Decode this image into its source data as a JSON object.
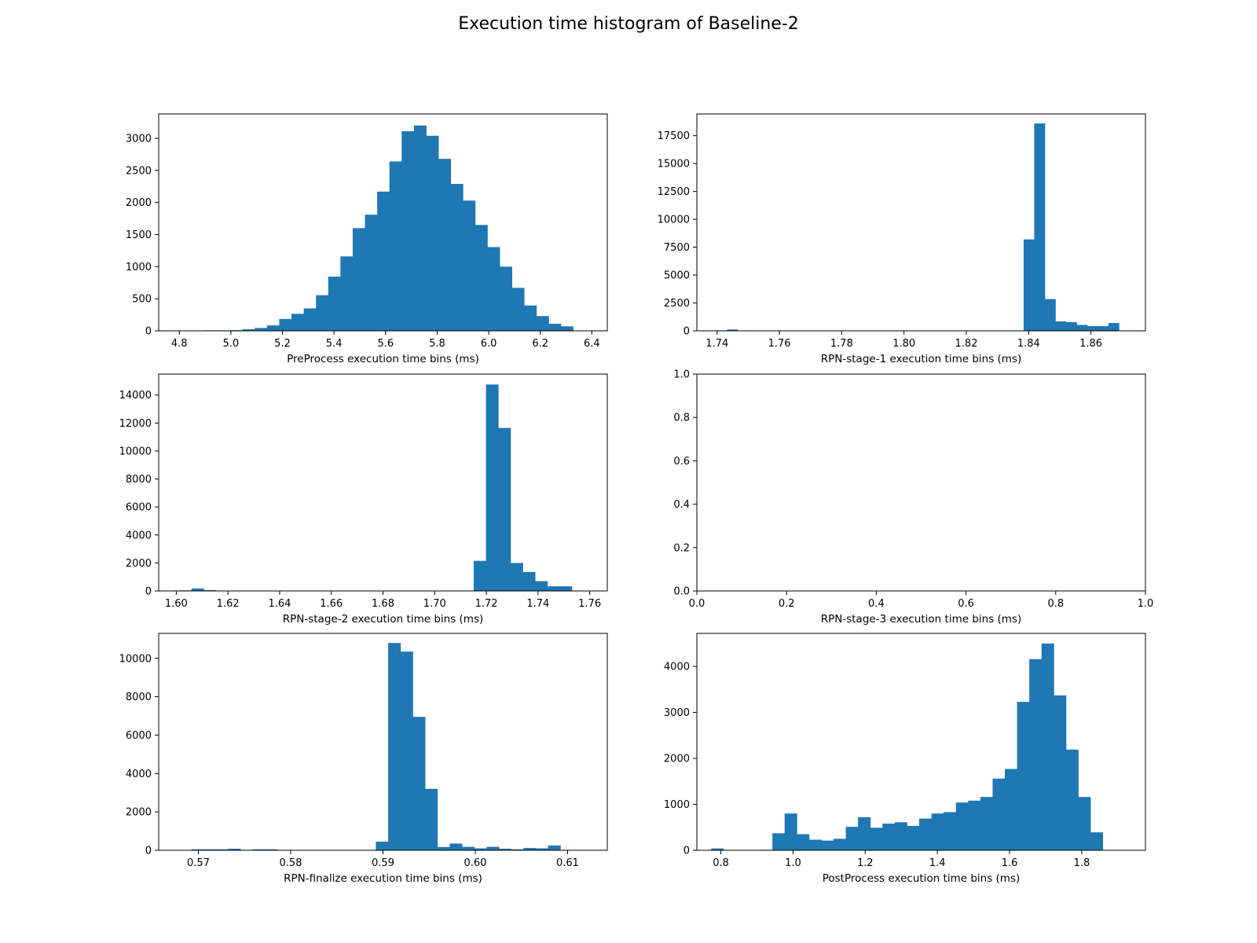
{
  "figure": {
    "title": "Execution time histogram of Baseline-2"
  },
  "colors": {
    "bar": "#1f77b4",
    "frame": "#000000",
    "background": "#ffffff"
  },
  "chart_data": [
    {
      "type": "bar",
      "subtype": "histogram",
      "xlabel": "PreProcess execution time bins (ms)",
      "ylabel": "",
      "xlim": [
        4.72,
        6.46
      ],
      "ylim": [
        0,
        3380
      ],
      "xticks": [
        4.8,
        5.0,
        5.2,
        5.4,
        5.6,
        5.8,
        6.0,
        6.2,
        6.4
      ],
      "xtick_labels": [
        "4.8",
        "5.0",
        "5.2",
        "5.4",
        "5.6",
        "5.8",
        "6.0",
        "6.2",
        "6.4"
      ],
      "yticks": [
        0,
        500,
        1000,
        1500,
        2000,
        2500,
        3000
      ],
      "ytick_labels": [
        "0",
        "500",
        "1000",
        "1500",
        "2000",
        "2500",
        "3000"
      ],
      "bin_start": 4.76,
      "bin_width": 0.0475,
      "values": [
        5,
        3,
        5,
        8,
        8,
        10,
        25,
        45,
        85,
        185,
        265,
        350,
        555,
        845,
        1160,
        1600,
        1810,
        2170,
        2640,
        3110,
        3200,
        3040,
        2680,
        2290,
        2030,
        1650,
        1305,
        1000,
        670,
        395,
        230,
        110,
        70
      ]
    },
    {
      "type": "bar",
      "subtype": "histogram",
      "xlabel": "RPN-stage-1 execution time bins (ms)",
      "ylabel": "",
      "xlim": [
        1.7335,
        1.8775
      ],
      "ylim": [
        0,
        19450
      ],
      "xticks": [
        1.74,
        1.76,
        1.78,
        1.8,
        1.82,
        1.84,
        1.86
      ],
      "xtick_labels": [
        "1.74",
        "1.76",
        "1.78",
        "1.80",
        "1.82",
        "1.84",
        "1.86"
      ],
      "yticks": [
        0,
        2500,
        5000,
        7500,
        10000,
        12500,
        15000,
        17500
      ],
      "ytick_labels": [
        "0",
        "2500",
        "5000",
        "7500",
        "10000",
        "12500",
        "15000",
        "17500"
      ],
      "bin_start": 1.7398,
      "bin_width": 0.0034,
      "values": [
        40,
        120,
        0,
        0,
        0,
        0,
        0,
        0,
        0,
        0,
        0,
        0,
        0,
        0,
        0,
        0,
        0,
        0,
        0,
        0,
        0,
        0,
        0,
        0,
        0,
        0,
        0,
        0,
        0,
        8200,
        18600,
        2850,
        850,
        780,
        530,
        420,
        420,
        700
      ]
    },
    {
      "type": "bar",
      "subtype": "histogram",
      "xlabel": "RPN-stage-2 execution time bins (ms)",
      "ylabel": "",
      "xlim": [
        1.5932,
        1.7668
      ],
      "ylim": [
        0,
        15500
      ],
      "xticks": [
        1.6,
        1.62,
        1.64,
        1.66,
        1.68,
        1.7,
        1.72,
        1.74,
        1.76
      ],
      "xtick_labels": [
        "1.60",
        "1.62",
        "1.64",
        "1.66",
        "1.68",
        "1.70",
        "1.72",
        "1.74",
        "1.76"
      ],
      "yticks": [
        0,
        2000,
        4000,
        6000,
        8000,
        10000,
        12000,
        14000
      ],
      "ytick_labels": [
        "0",
        "2000",
        "4000",
        "6000",
        "8000",
        "10000",
        "12000",
        "14000"
      ],
      "bin_start": 1.6011,
      "bin_width": 0.00475,
      "values": [
        40,
        180,
        60,
        0,
        0,
        0,
        0,
        0,
        0,
        0,
        0,
        0,
        0,
        0,
        0,
        0,
        0,
        0,
        0,
        0,
        0,
        0,
        0,
        0,
        2150,
        14750,
        11650,
        2000,
        1350,
        700,
        330,
        330
      ]
    },
    {
      "type": "bar",
      "subtype": "histogram",
      "xlabel": "RPN-stage-3 execution time bins (ms)",
      "ylabel": "",
      "xlim": [
        0,
        1
      ],
      "ylim": [
        0,
        1
      ],
      "xticks": [
        0.0,
        0.2,
        0.4,
        0.6,
        0.8,
        1.0
      ],
      "xtick_labels": [
        "0.0",
        "0.2",
        "0.4",
        "0.6",
        "0.8",
        "1.0"
      ],
      "yticks": [
        0.0,
        0.2,
        0.4,
        0.6,
        0.8,
        1.0
      ],
      "ytick_labels": [
        "0.0",
        "0.2",
        "0.4",
        "0.6",
        "0.8",
        "1.0"
      ],
      "bin_start": 0,
      "bin_width": 0,
      "values": []
    },
    {
      "type": "bar",
      "subtype": "histogram",
      "xlabel": "RPN-finalize execution time bins (ms)",
      "ylabel": "",
      "xlim": [
        0.5657,
        0.6143
      ],
      "ylim": [
        0,
        11300
      ],
      "xticks": [
        0.57,
        0.58,
        0.59,
        0.6,
        0.61
      ],
      "xtick_labels": [
        "0.57",
        "0.58",
        "0.59",
        "0.60",
        "0.61"
      ],
      "yticks": [
        0,
        2000,
        4000,
        6000,
        8000,
        10000
      ],
      "ytick_labels": [
        "0",
        "2000",
        "4000",
        "6000",
        "8000",
        "10000"
      ],
      "bin_start": 0.5679,
      "bin_width": 0.001333,
      "values": [
        0,
        50,
        50,
        50,
        80,
        0,
        50,
        50,
        0,
        0,
        0,
        0,
        0,
        0,
        0,
        10,
        450,
        10800,
        10350,
        6950,
        3200,
        170,
        350,
        180,
        100,
        180,
        80,
        50,
        120,
        100,
        250
      ]
    },
    {
      "type": "bar",
      "subtype": "histogram",
      "xlabel": "PostProcess execution time bins (ms)",
      "ylabel": "",
      "xlim": [
        0.7335,
        1.9765
      ],
      "ylim": [
        0,
        4720
      ],
      "xticks": [
        0.8,
        1.0,
        1.2,
        1.4,
        1.6,
        1.8
      ],
      "xtick_labels": [
        "0.8",
        "1.0",
        "1.2",
        "1.4",
        "1.6",
        "1.8"
      ],
      "yticks": [
        0,
        1000,
        2000,
        3000,
        4000
      ],
      "ytick_labels": [
        "0",
        "1000",
        "2000",
        "3000",
        "4000"
      ],
      "bin_start": 0.7733,
      "bin_width": 0.0339,
      "values": [
        40,
        0,
        0,
        0,
        10,
        370,
        800,
        350,
        230,
        210,
        250,
        510,
        720,
        490,
        580,
        610,
        530,
        690,
        800,
        830,
        1040,
        1080,
        1160,
        1560,
        1770,
        3230,
        4160,
        4500,
        3370,
        2190,
        1160,
        390
      ]
    }
  ]
}
